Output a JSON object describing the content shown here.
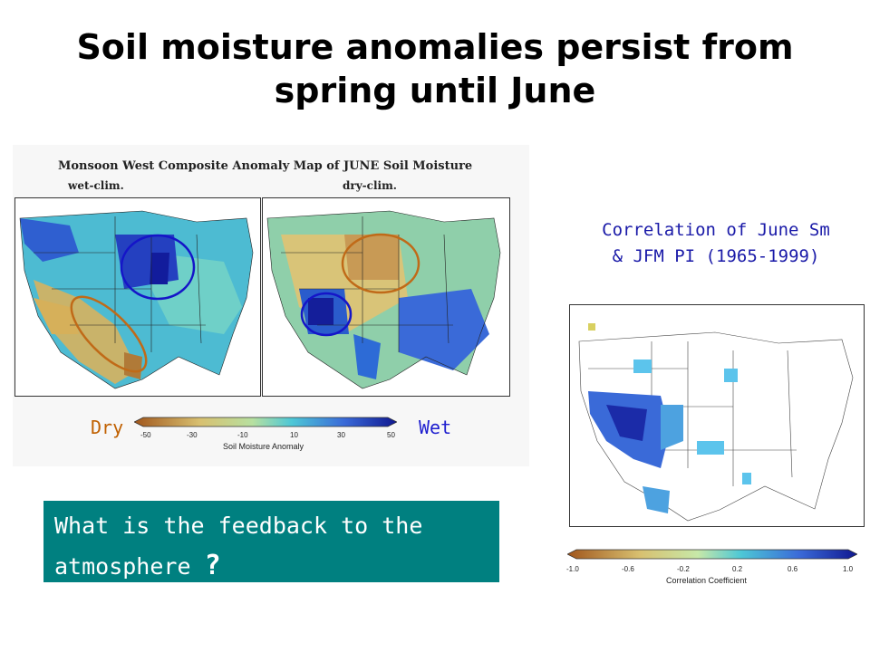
{
  "slide": {
    "title_line1": "Soil moisture anomalies persist from",
    "title_line2": "spring until June"
  },
  "left_figure": {
    "title": "Monsoon West Composite Anomaly Map of JUNE Soil Moisture",
    "panel_left_label": "wet-clim.",
    "panel_right_label": "dry-clim.",
    "dry_label": "Dry",
    "wet_label": "Wet",
    "colorbar_ticks": [
      "-50",
      "-30",
      "-10",
      "10",
      "30",
      "50"
    ],
    "colorbar_label": "Soil Moisture Anomaly"
  },
  "right_figure": {
    "caption_line1": "Correlation of June Sm",
    "caption_line2": "& JFM PI (1965-1999)",
    "colorbar_ticks": [
      "-1.0",
      "-0.6",
      "-0.2",
      "0.2",
      "0.6",
      "1.0"
    ],
    "colorbar_label": "Correlation Coefficient"
  },
  "question": {
    "line1": "What is the feedback to the",
    "line2": "atmosphere",
    "mark": "?"
  },
  "colors": {
    "teal_box": "#008080",
    "dry": "#c06000",
    "wet": "#1f1fcf",
    "caption": "#1a1aa8"
  }
}
